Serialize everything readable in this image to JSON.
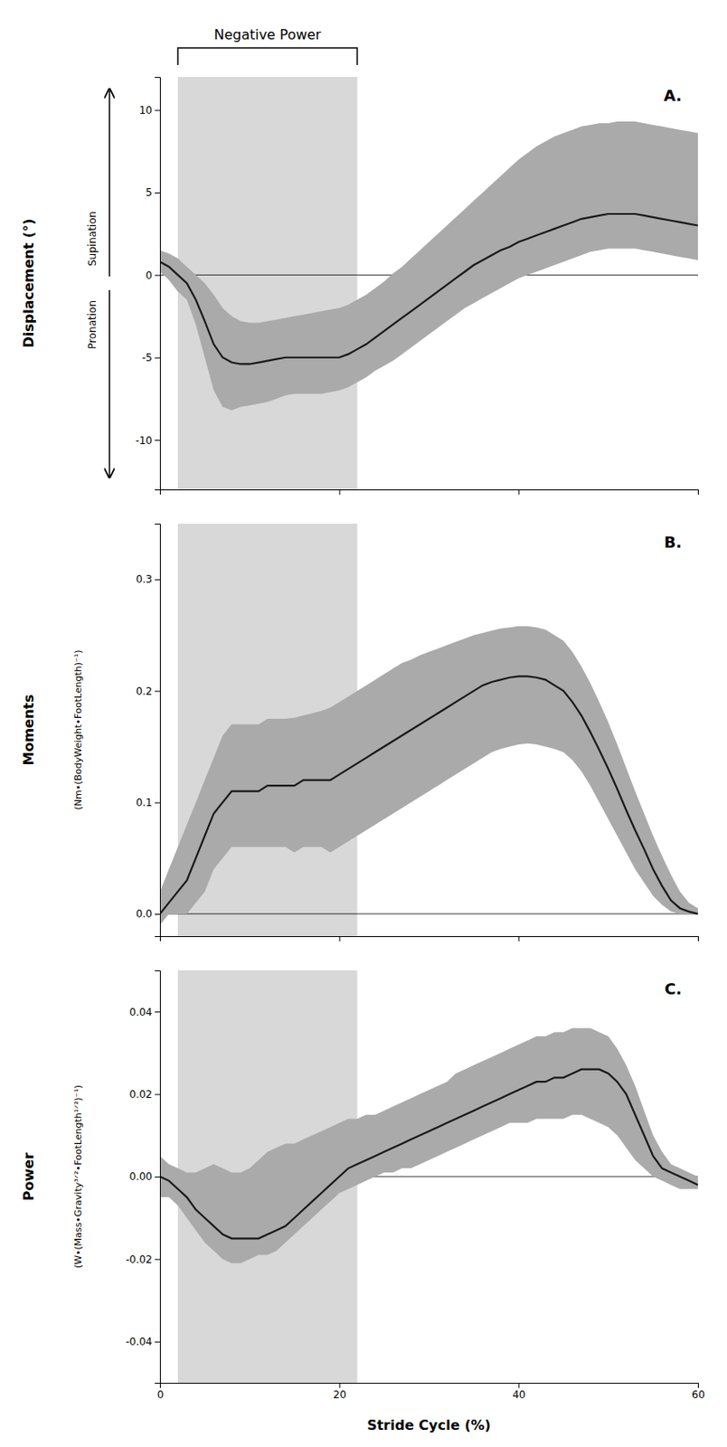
{
  "chart_data": [
    {
      "type": "line",
      "title": "A.",
      "ylabel": "Displacement (°)",
      "ylabel_up": "Supination",
      "ylabel_down": "Pronation",
      "annotations": [
        {
          "text": "Negative Power",
          "x": [
            2,
            22
          ]
        }
      ],
      "shade": {
        "x": [
          2,
          22
        ],
        "color": "#d8d8d8"
      },
      "hlines": [
        0
      ],
      "tick_labels": "y",
      "xlim": [
        0,
        60
      ],
      "xticks": [
        0,
        20,
        40,
        60
      ],
      "ylim": [
        -13,
        12
      ],
      "yticks": [
        -10,
        -5,
        0,
        5,
        10
      ],
      "x": [
        0,
        1,
        2,
        3,
        4,
        5,
        6,
        7,
        8,
        9,
        10,
        11,
        12,
        13,
        14,
        15,
        16,
        17,
        18,
        19,
        20,
        21,
        22,
        23,
        24,
        25,
        26,
        27,
        28,
        29,
        30,
        31,
        32,
        33,
        34,
        35,
        36,
        37,
        38,
        39,
        40,
        41,
        42,
        43,
        44,
        45,
        46,
        47,
        48,
        49,
        50,
        51,
        52,
        53,
        54,
        55,
        56,
        57,
        58,
        59,
        60
      ],
      "band": {
        "color": "#aaaaaa",
        "upper": [
          1.5,
          1.3,
          1.0,
          0.5,
          0.0,
          -0.5,
          -1.2,
          -2.0,
          -2.5,
          -2.8,
          -2.9,
          -2.9,
          -2.8,
          -2.7,
          -2.6,
          -2.5,
          -2.4,
          -2.3,
          -2.2,
          -2.1,
          -2.0,
          -1.8,
          -1.5,
          -1.2,
          -0.8,
          -0.4,
          0.1,
          0.5,
          1.0,
          1.5,
          2.0,
          2.5,
          3.0,
          3.5,
          4.0,
          4.5,
          5.0,
          5.5,
          6.0,
          6.5,
          7.0,
          7.4,
          7.8,
          8.1,
          8.4,
          8.6,
          8.8,
          9.0,
          9.1,
          9.2,
          9.2,
          9.3,
          9.3,
          9.3,
          9.2,
          9.1,
          9.0,
          8.9,
          8.8,
          8.7,
          8.6
        ],
        "lower": [
          0.2,
          -0.3,
          -1.0,
          -1.5,
          -3.0,
          -5.0,
          -7.0,
          -8.0,
          -8.2,
          -8.0,
          -7.9,
          -7.8,
          -7.7,
          -7.5,
          -7.3,
          -7.2,
          -7.2,
          -7.2,
          -7.2,
          -7.1,
          -7.0,
          -6.8,
          -6.5,
          -6.2,
          -5.8,
          -5.5,
          -5.2,
          -4.8,
          -4.4,
          -4.0,
          -3.6,
          -3.2,
          -2.8,
          -2.4,
          -2.0,
          -1.7,
          -1.4,
          -1.1,
          -0.8,
          -0.5,
          -0.2,
          0.0,
          0.2,
          0.4,
          0.6,
          0.8,
          1.0,
          1.2,
          1.4,
          1.5,
          1.6,
          1.6,
          1.6,
          1.6,
          1.5,
          1.4,
          1.3,
          1.2,
          1.1,
          1.0,
          0.9
        ]
      },
      "series": [
        {
          "color": "#1a1a1a",
          "values": [
            0.8,
            0.5,
            0.0,
            -0.5,
            -1.5,
            -2.8,
            -4.2,
            -5.0,
            -5.3,
            -5.4,
            -5.4,
            -5.3,
            -5.2,
            -5.1,
            -5.0,
            -5.0,
            -5.0,
            -5.0,
            -5.0,
            -5.0,
            -5.0,
            -4.8,
            -4.5,
            -4.2,
            -3.8,
            -3.4,
            -3.0,
            -2.6,
            -2.2,
            -1.8,
            -1.4,
            -1.0,
            -0.6,
            -0.2,
            0.2,
            0.6,
            0.9,
            1.2,
            1.5,
            1.7,
            2.0,
            2.2,
            2.4,
            2.6,
            2.8,
            3.0,
            3.2,
            3.4,
            3.5,
            3.6,
            3.7,
            3.7,
            3.7,
            3.7,
            3.6,
            3.5,
            3.4,
            3.3,
            3.2,
            3.1,
            3.0
          ]
        }
      ]
    },
    {
      "type": "line",
      "title": "B.",
      "ylabel": "Moments",
      "ylabel_sub": "(Nm•(BodyWeight•FootLength)⁻¹)",
      "shade": {
        "x": [
          2,
          22
        ],
        "color": "#d8d8d8"
      },
      "hlines": [
        0
      ],
      "tick_labels": "y",
      "xlim": [
        0,
        60
      ],
      "xticks": [
        0,
        20,
        40,
        60
      ],
      "ylim": [
        -0.02,
        0.35
      ],
      "yticks": [
        {
          "value": 0.0,
          "label": "0.0"
        },
        0.1,
        0.2,
        0.3
      ],
      "x": [
        0,
        1,
        2,
        3,
        4,
        5,
        6,
        7,
        8,
        9,
        10,
        11,
        12,
        13,
        14,
        15,
        16,
        17,
        18,
        19,
        20,
        21,
        22,
        23,
        24,
        25,
        26,
        27,
        28,
        29,
        30,
        31,
        32,
        33,
        34,
        35,
        36,
        37,
        38,
        39,
        40,
        41,
        42,
        43,
        44,
        45,
        46,
        47,
        48,
        49,
        50,
        51,
        52,
        53,
        54,
        55,
        56,
        57,
        58,
        59,
        60
      ],
      "band": {
        "color": "#aaaaaa",
        "upper": [
          0.02,
          0.04,
          0.06,
          0.08,
          0.1,
          0.12,
          0.14,
          0.16,
          0.17,
          0.17,
          0.17,
          0.17,
          0.175,
          0.175,
          0.175,
          0.176,
          0.178,
          0.18,
          0.182,
          0.185,
          0.19,
          0.195,
          0.2,
          0.205,
          0.21,
          0.215,
          0.22,
          0.225,
          0.228,
          0.232,
          0.235,
          0.238,
          0.241,
          0.244,
          0.247,
          0.25,
          0.252,
          0.254,
          0.256,
          0.257,
          0.258,
          0.258,
          0.257,
          0.255,
          0.25,
          0.245,
          0.235,
          0.222,
          0.207,
          0.19,
          0.172,
          0.152,
          0.131,
          0.11,
          0.09,
          0.07,
          0.052,
          0.035,
          0.02,
          0.01,
          0.005
        ],
        "lower": [
          -0.01,
          0.0,
          0.0,
          0.0,
          0.01,
          0.02,
          0.04,
          0.05,
          0.06,
          0.06,
          0.06,
          0.06,
          0.06,
          0.06,
          0.06,
          0.055,
          0.06,
          0.06,
          0.06,
          0.055,
          0.06,
          0.065,
          0.07,
          0.075,
          0.08,
          0.085,
          0.09,
          0.095,
          0.1,
          0.105,
          0.11,
          0.115,
          0.12,
          0.125,
          0.13,
          0.135,
          0.14,
          0.145,
          0.148,
          0.15,
          0.152,
          0.153,
          0.152,
          0.15,
          0.148,
          0.145,
          0.138,
          0.128,
          0.115,
          0.1,
          0.085,
          0.07,
          0.055,
          0.04,
          0.028,
          0.016,
          0.008,
          0.002,
          0.0,
          0.0,
          0.0
        ]
      },
      "series": [
        {
          "color": "#1a1a1a",
          "values": [
            0.0,
            0.01,
            0.02,
            0.03,
            0.05,
            0.07,
            0.09,
            0.1,
            0.11,
            0.11,
            0.11,
            0.11,
            0.115,
            0.115,
            0.115,
            0.115,
            0.12,
            0.12,
            0.12,
            0.12,
            0.125,
            0.13,
            0.135,
            0.14,
            0.145,
            0.15,
            0.155,
            0.16,
            0.165,
            0.17,
            0.175,
            0.18,
            0.185,
            0.19,
            0.195,
            0.2,
            0.205,
            0.208,
            0.21,
            0.212,
            0.213,
            0.213,
            0.212,
            0.21,
            0.205,
            0.2,
            0.19,
            0.178,
            0.163,
            0.147,
            0.13,
            0.112,
            0.093,
            0.075,
            0.058,
            0.04,
            0.025,
            0.012,
            0.005,
            0.002,
            0.0
          ]
        }
      ]
    },
    {
      "type": "line",
      "title": "C.",
      "ylabel": "Power",
      "ylabel_sub": "(W•(Mass•Gravity³ᐟ²•FootLength¹ᐟ²)⁻¹)",
      "xlabel": "Stride Cycle (%)",
      "shade": {
        "x": [
          2,
          22
        ],
        "color": "#d8d8d8"
      },
      "hlines": [
        0
      ],
      "xlim": [
        0,
        60
      ],
      "xticks": [
        0,
        20,
        40,
        60
      ],
      "ylim": [
        -0.05,
        0.05
      ],
      "yticks": [
        -0.04,
        -0.02,
        {
          "value": 0.0,
          "label": "0.00"
        },
        0.02,
        0.04
      ],
      "x": [
        0,
        1,
        2,
        3,
        4,
        5,
        6,
        7,
        8,
        9,
        10,
        11,
        12,
        13,
        14,
        15,
        16,
        17,
        18,
        19,
        20,
        21,
        22,
        23,
        24,
        25,
        26,
        27,
        28,
        29,
        30,
        31,
        32,
        33,
        34,
        35,
        36,
        37,
        38,
        39,
        40,
        41,
        42,
        43,
        44,
        45,
        46,
        47,
        48,
        49,
        50,
        51,
        52,
        53,
        54,
        55,
        56,
        57,
        58,
        59,
        60
      ],
      "band": {
        "color": "#aaaaaa",
        "upper": [
          0.005,
          0.003,
          0.002,
          0.001,
          0.001,
          0.002,
          0.003,
          0.002,
          0.001,
          0.001,
          0.002,
          0.004,
          0.006,
          0.007,
          0.008,
          0.008,
          0.009,
          0.01,
          0.011,
          0.012,
          0.013,
          0.014,
          0.014,
          0.015,
          0.015,
          0.016,
          0.017,
          0.018,
          0.019,
          0.02,
          0.021,
          0.022,
          0.023,
          0.025,
          0.026,
          0.027,
          0.028,
          0.029,
          0.03,
          0.031,
          0.032,
          0.033,
          0.034,
          0.034,
          0.035,
          0.035,
          0.036,
          0.036,
          0.036,
          0.035,
          0.034,
          0.031,
          0.027,
          0.022,
          0.016,
          0.01,
          0.006,
          0.003,
          0.002,
          0.001,
          0.0
        ],
        "lower": [
          -0.005,
          -0.005,
          -0.007,
          -0.01,
          -0.013,
          -0.016,
          -0.018,
          -0.02,
          -0.021,
          -0.021,
          -0.02,
          -0.019,
          -0.019,
          -0.018,
          -0.016,
          -0.014,
          -0.012,
          -0.01,
          -0.008,
          -0.006,
          -0.004,
          -0.003,
          -0.002,
          -0.001,
          0.0,
          0.001,
          0.001,
          0.002,
          0.002,
          0.003,
          0.004,
          0.005,
          0.006,
          0.007,
          0.008,
          0.009,
          0.01,
          0.011,
          0.012,
          0.013,
          0.013,
          0.013,
          0.014,
          0.014,
          0.014,
          0.014,
          0.015,
          0.015,
          0.014,
          0.013,
          0.012,
          0.01,
          0.007,
          0.004,
          0.002,
          0.0,
          -0.001,
          -0.002,
          -0.003,
          -0.003,
          -0.003
        ]
      },
      "series": [
        {
          "color": "#1a1a1a",
          "values": [
            0.0,
            -0.001,
            -0.003,
            -0.005,
            -0.008,
            -0.01,
            -0.012,
            -0.014,
            -0.015,
            -0.015,
            -0.015,
            -0.015,
            -0.014,
            -0.013,
            -0.012,
            -0.01,
            -0.008,
            -0.006,
            -0.004,
            -0.002,
            0.0,
            0.002,
            0.003,
            0.004,
            0.005,
            0.006,
            0.007,
            0.008,
            0.009,
            0.01,
            0.011,
            0.012,
            0.013,
            0.014,
            0.015,
            0.016,
            0.017,
            0.018,
            0.019,
            0.02,
            0.021,
            0.022,
            0.023,
            0.023,
            0.024,
            0.024,
            0.025,
            0.026,
            0.026,
            0.026,
            0.025,
            0.023,
            0.02,
            0.015,
            0.01,
            0.005,
            0.002,
            0.001,
            0.0,
            -0.001,
            -0.002
          ]
        }
      ]
    }
  ]
}
